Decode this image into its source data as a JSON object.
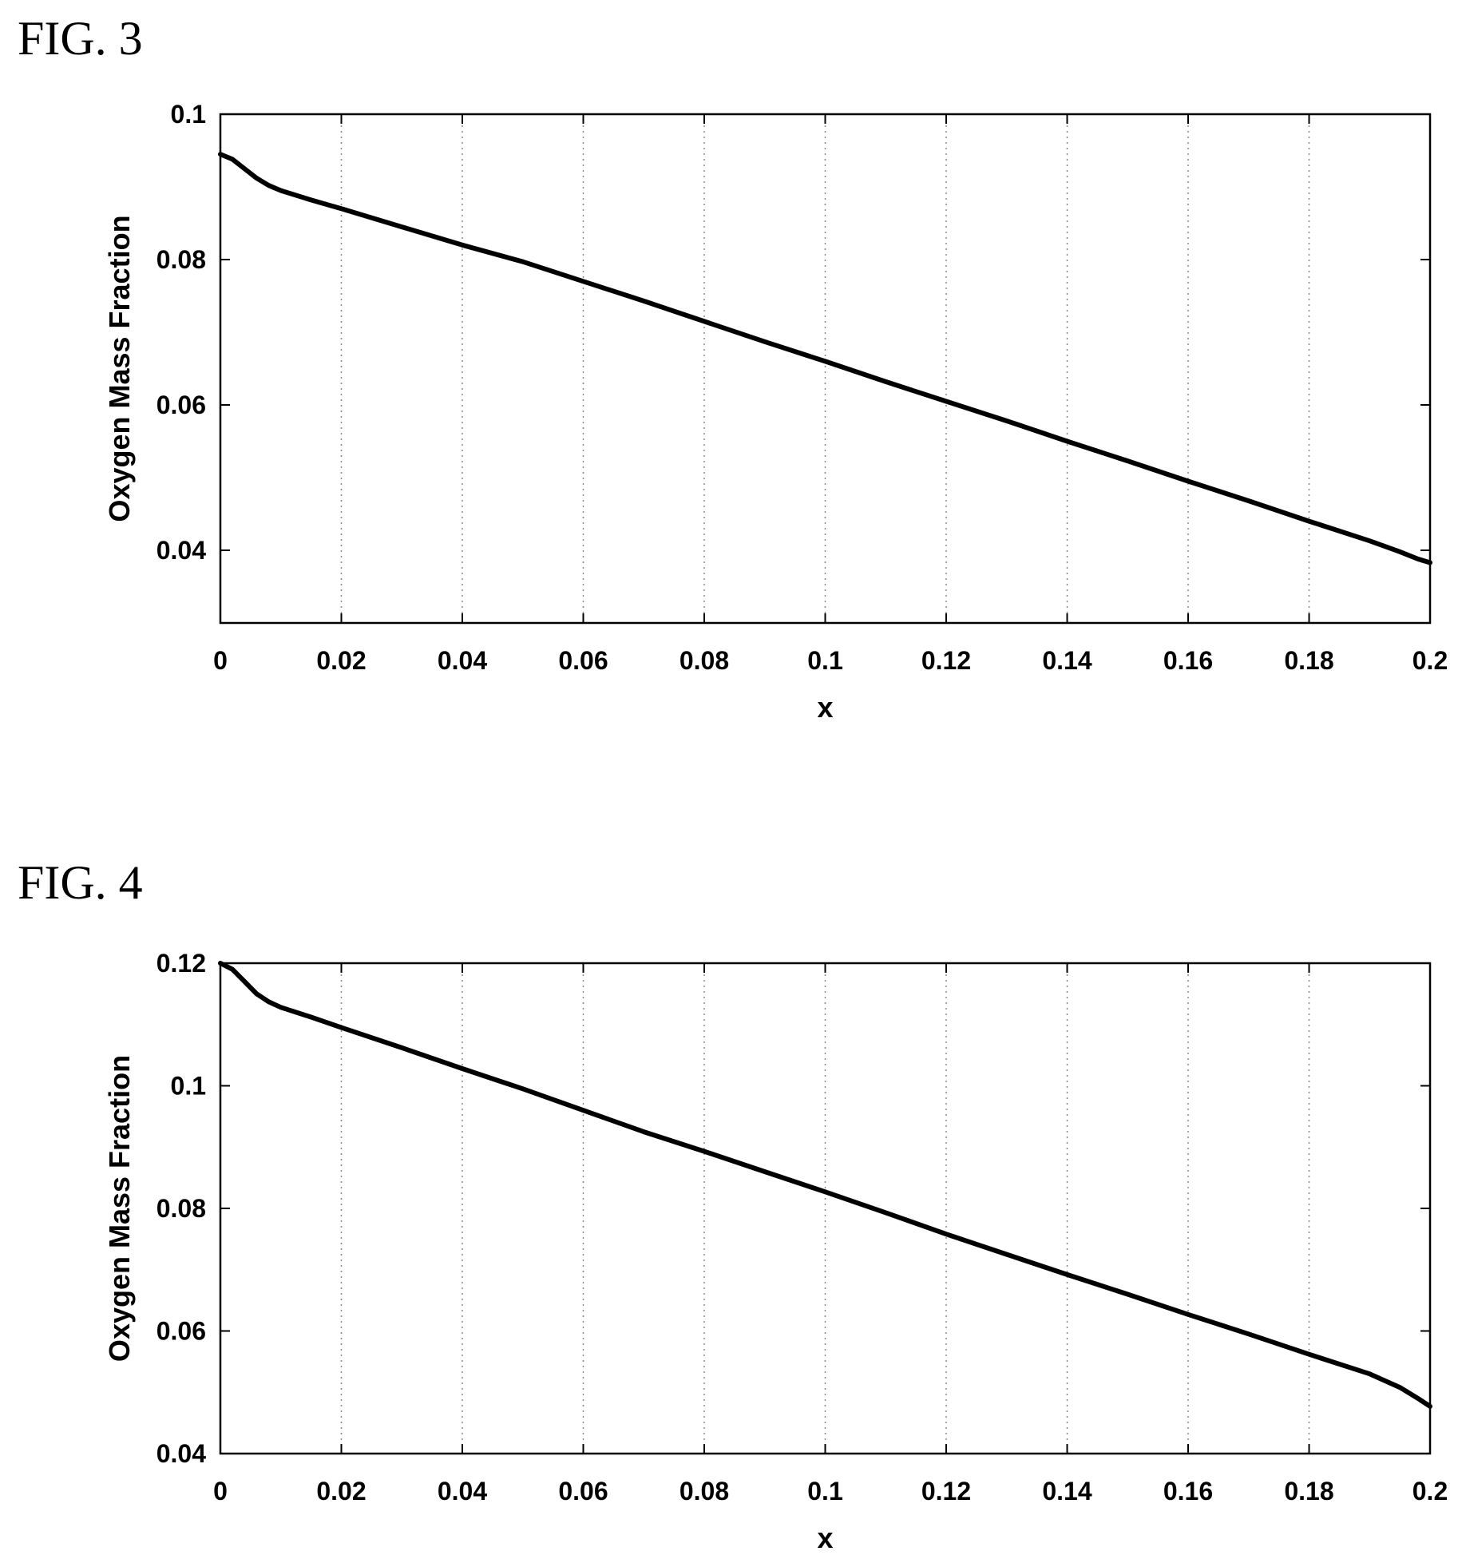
{
  "figures": [
    {
      "label": "FIG. 3"
    },
    {
      "label": "FIG. 4"
    }
  ],
  "chart_data": [
    {
      "type": "line",
      "title": "",
      "xlabel": "x",
      "ylabel": "Oxygen Mass Fraction",
      "xlim": [
        0,
        0.2
      ],
      "ylim": [
        0.03,
        0.1
      ],
      "xticks": [
        "0",
        "0.02",
        "0.04",
        "0.06",
        "0.08",
        "0.1",
        "0.12",
        "0.14",
        "0.16",
        "0.18",
        "0.2"
      ],
      "yticks": [
        "0.04",
        "0.06",
        "0.08",
        "0.1"
      ],
      "grid": "vertical dotted",
      "series": [
        {
          "x": [
            0,
            0.002,
            0.004,
            0.006,
            0.008,
            0.01,
            0.015,
            0.02,
            0.03,
            0.04,
            0.05,
            0.06,
            0.07,
            0.08,
            0.09,
            0.1,
            0.11,
            0.12,
            0.13,
            0.14,
            0.15,
            0.16,
            0.17,
            0.18,
            0.19,
            0.195,
            0.198,
            0.2
          ],
          "y": [
            0.0945,
            0.0938,
            0.0925,
            0.0912,
            0.0902,
            0.0895,
            0.0882,
            0.087,
            0.0845,
            0.082,
            0.0797,
            0.077,
            0.0743,
            0.0715,
            0.0687,
            0.066,
            0.0632,
            0.0605,
            0.0578,
            0.055,
            0.0523,
            0.0495,
            0.0468,
            0.044,
            0.0413,
            0.0398,
            0.0388,
            0.0383
          ]
        }
      ]
    },
    {
      "type": "line",
      "title": "",
      "xlabel": "x",
      "ylabel": "Oxygen Mass Fraction",
      "xlim": [
        0,
        0.2
      ],
      "ylim": [
        0.04,
        0.12
      ],
      "xticks": [
        "0",
        "0.02",
        "0.04",
        "0.06",
        "0.08",
        "0.1",
        "0.12",
        "0.14",
        "0.16",
        "0.18",
        "0.2"
      ],
      "yticks": [
        "0.04",
        "0.06",
        "0.08",
        "0.1",
        "0.12"
      ],
      "grid": "vertical dotted",
      "series": [
        {
          "x": [
            0,
            0.002,
            0.004,
            0.006,
            0.008,
            0.01,
            0.015,
            0.02,
            0.03,
            0.04,
            0.05,
            0.06,
            0.07,
            0.08,
            0.09,
            0.1,
            0.11,
            0.12,
            0.13,
            0.14,
            0.15,
            0.16,
            0.17,
            0.18,
            0.19,
            0.195,
            0.198,
            0.2
          ],
          "y": [
            0.12,
            0.119,
            0.117,
            0.115,
            0.1137,
            0.1128,
            0.1112,
            0.1095,
            0.1062,
            0.1028,
            0.0995,
            0.096,
            0.0925,
            0.0893,
            0.086,
            0.0827,
            0.0793,
            0.0758,
            0.0725,
            0.0692,
            0.066,
            0.0627,
            0.0595,
            0.0562,
            0.053,
            0.0508,
            0.049,
            0.0477
          ]
        }
      ]
    }
  ]
}
